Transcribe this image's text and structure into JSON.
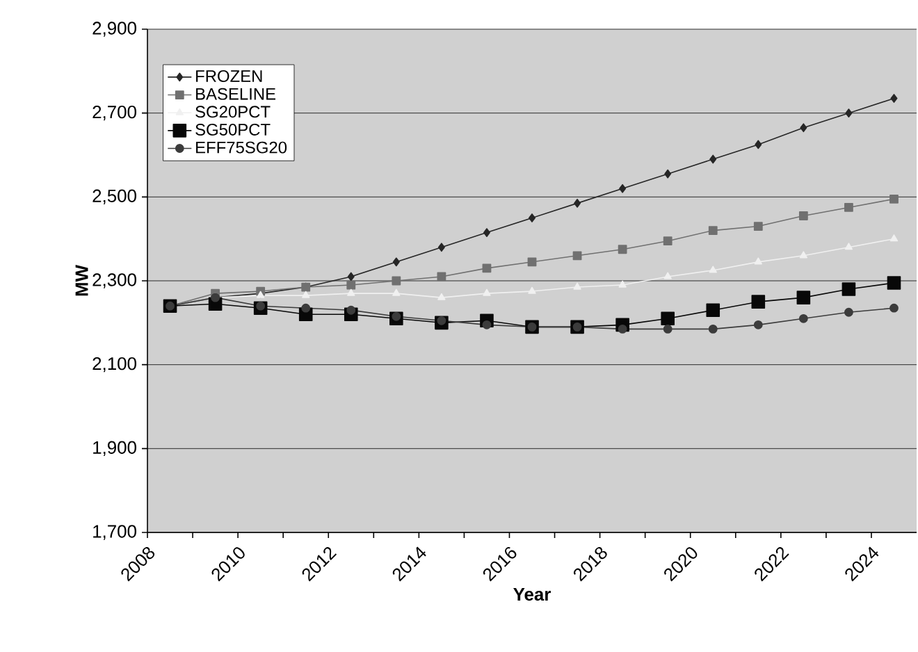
{
  "chart_data": {
    "type": "line",
    "xlabel": "Year",
    "ylabel": "MW",
    "x": [
      2008.5,
      2009.5,
      2010.5,
      2011.5,
      2012.5,
      2013.5,
      2014.5,
      2015.5,
      2016.5,
      2017.5,
      2018.5,
      2019.5,
      2020.5,
      2021.5,
      2022.5,
      2023.5,
      2024.5
    ],
    "series": [
      {
        "name": "FROZEN",
        "color": "#262626",
        "marker": "diamond",
        "values": [
          2240,
          2260,
          2270,
          2285,
          2310,
          2345,
          2380,
          2415,
          2450,
          2485,
          2520,
          2555,
          2590,
          2625,
          2665,
          2700,
          2735
        ]
      },
      {
        "name": "BASELINE",
        "color": "#707070",
        "marker": "square",
        "values": [
          2240,
          2270,
          2275,
          2285,
          2290,
          2300,
          2310,
          2330,
          2345,
          2360,
          2375,
          2395,
          2420,
          2430,
          2455,
          2475,
          2495
        ]
      },
      {
        "name": "SG20PCT",
        "color": "#f0f0f0",
        "marker": "triangle",
        "values": [
          2240,
          2260,
          2265,
          2265,
          2270,
          2270,
          2260,
          2270,
          2275,
          2285,
          2290,
          2310,
          2325,
          2345,
          2360,
          2380,
          2400
        ]
      },
      {
        "name": "SG50PCT",
        "color": "#080808",
        "marker": "square",
        "values": [
          2240,
          2245,
          2235,
          2220,
          2220,
          2210,
          2200,
          2205,
          2190,
          2190,
          2195,
          2210,
          2230,
          2250,
          2260,
          2280,
          2295
        ]
      },
      {
        "name": "EFF75SG20",
        "color": "#3c3c3c",
        "marker": "circle",
        "values": [
          2240,
          2260,
          2240,
          2235,
          2230,
          2215,
          2205,
          2195,
          2190,
          2190,
          2185,
          2185,
          2185,
          2195,
          2210,
          2225,
          2235
        ]
      }
    ],
    "xlim": [
      2008,
      2025
    ],
    "xticks": [
      2008,
      {
        "value": 2009,
        "label": null
      },
      2010,
      {
        "value": 2011,
        "label": null
      },
      2012,
      {
        "value": 2013,
        "label": null
      },
      2014,
      {
        "value": 2015,
        "label": null
      },
      2016,
      {
        "value": 2017,
        "label": null
      },
      2018,
      {
        "value": 2019,
        "label": null
      },
      2020,
      {
        "value": 2021,
        "label": null
      },
      2022,
      {
        "value": 2023,
        "label": null
      },
      2024
    ],
    "ylim": [
      1700,
      2900
    ],
    "yticks": [
      {
        "value": 1700,
        "label": "1,700"
      },
      {
        "value": 1900,
        "label": "1,900"
      },
      {
        "value": 2100,
        "label": "2,100"
      },
      {
        "value": 2300,
        "label": "2,300"
      },
      {
        "value": 2500,
        "label": "2,500"
      },
      {
        "value": 2700,
        "label": "2,700"
      },
      {
        "value": 2900,
        "label": "2,900"
      }
    ],
    "grid": "y",
    "legend": "top left"
  }
}
